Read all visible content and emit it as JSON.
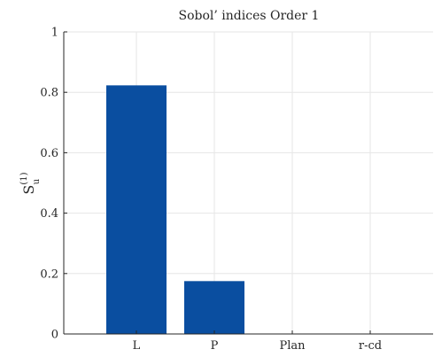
{
  "chart_data": {
    "type": "bar",
    "title": "Sobol’ indices Order 1",
    "ylabel": {
      "base": "S",
      "superscript": "(1)",
      "subscript": "u"
    },
    "xlabel": "",
    "categories": [
      "L",
      "P",
      "Plan",
      "r-cd"
    ],
    "values": [
      0.823,
      0.175,
      0,
      0
    ],
    "ylim": [
      0,
      1
    ],
    "yticks": [
      0,
      0.2,
      0.4,
      0.6,
      0.8,
      1
    ],
    "ytick_labels": [
      "0",
      "0.2",
      "0.4",
      "0.6",
      "0.8",
      "1"
    ],
    "grid": true,
    "legend": "none",
    "colors": {
      "bar": "#0a4ea0",
      "grid": "#e6e6e6",
      "axis": "#262626"
    }
  }
}
